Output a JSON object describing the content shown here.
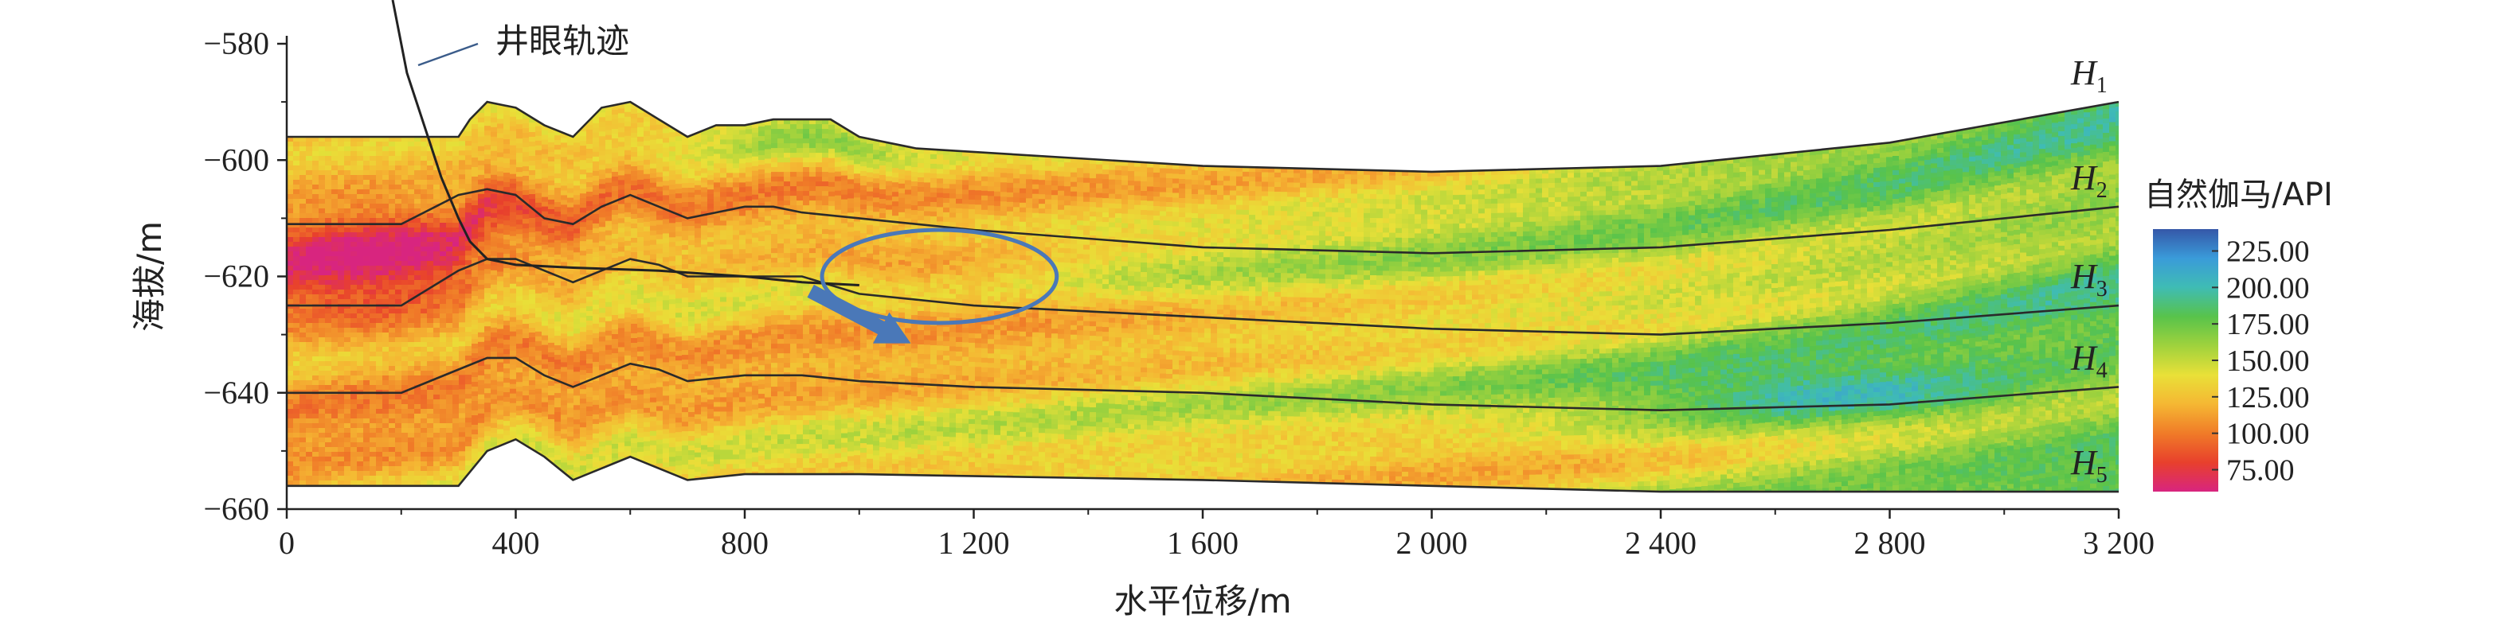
{
  "chart_data": {
    "type": "heatmap",
    "title": "",
    "xlabel": "水平位移/m",
    "ylabel": "海拔/m",
    "xlim": [
      0,
      3200
    ],
    "ylim": [
      -660,
      -580
    ],
    "x_ticks": [
      0,
      400,
      800,
      1200,
      1600,
      2000,
      2400,
      2800,
      3200
    ],
    "x_tick_labels": [
      "0",
      "400",
      "800",
      "1 200",
      "1 600",
      "2 000",
      "2 400",
      "2 800",
      "3 200"
    ],
    "y_ticks": [
      -580,
      -600,
      -620,
      -640,
      -660
    ],
    "y_tick_labels": [
      "−580",
      "−600",
      "−620",
      "−640",
      "−660"
    ],
    "grid": false,
    "colorbar": {
      "title": "自然伽马/API",
      "placement": "right",
      "min": 60,
      "max": 240,
      "ticks": [
        225,
        200,
        175,
        150,
        125,
        100,
        75
      ],
      "tick_labels": [
        "225.00",
        "200.00",
        "175.00",
        "150.00",
        "125.00",
        "100.00",
        "75.00"
      ],
      "colors": [
        "#d8257f",
        "#e8402c",
        "#f07b28",
        "#f5b733",
        "#e9e038",
        "#9fd23d",
        "#58c34b",
        "#3fbcb4",
        "#3a9bd9",
        "#3557a8"
      ]
    },
    "model_top": [
      [
        0,
        -596
      ],
      [
        300,
        -596
      ],
      [
        320,
        -593
      ],
      [
        350,
        -590
      ],
      [
        400,
        -591
      ],
      [
        450,
        -594
      ],
      [
        500,
        -596
      ],
      [
        550,
        -591
      ],
      [
        600,
        -590
      ],
      [
        650,
        -593
      ],
      [
        700,
        -596
      ],
      [
        750,
        -594
      ],
      [
        800,
        -594
      ],
      [
        850,
        -593
      ],
      [
        900,
        -593
      ],
      [
        950,
        -593
      ],
      [
        1000,
        -596
      ],
      [
        1100,
        -598
      ],
      [
        1600,
        -601
      ],
      [
        2000,
        -602
      ],
      [
        2400,
        -601
      ],
      [
        2800,
        -597
      ],
      [
        3200,
        -590
      ]
    ],
    "model_bottom": [
      [
        0,
        -656
      ],
      [
        300,
        -656
      ],
      [
        350,
        -650
      ],
      [
        400,
        -648
      ],
      [
        450,
        -651
      ],
      [
        500,
        -655
      ],
      [
        550,
        -653
      ],
      [
        600,
        -651
      ],
      [
        650,
        -653
      ],
      [
        700,
        -655
      ],
      [
        800,
        -654
      ],
      [
        900,
        -654
      ],
      [
        1000,
        -654
      ],
      [
        1600,
        -655
      ],
      [
        2000,
        -656
      ],
      [
        2400,
        -657
      ],
      [
        2800,
        -657
      ],
      [
        3200,
        -657
      ]
    ],
    "horizons": [
      {
        "name": "H",
        "sub": "1",
        "points": [
          [
            0,
            -596
          ],
          [
            300,
            -596
          ],
          [
            320,
            -593
          ],
          [
            350,
            -590
          ],
          [
            400,
            -591
          ],
          [
            450,
            -594
          ],
          [
            500,
            -596
          ],
          [
            550,
            -591
          ],
          [
            600,
            -590
          ],
          [
            650,
            -593
          ],
          [
            700,
            -596
          ],
          [
            750,
            -594
          ],
          [
            800,
            -594
          ],
          [
            850,
            -593
          ],
          [
            900,
            -593
          ],
          [
            950,
            -593
          ],
          [
            1000,
            -596
          ],
          [
            1100,
            -598
          ],
          [
            1600,
            -601
          ],
          [
            2000,
            -602
          ],
          [
            2400,
            -601
          ],
          [
            2800,
            -597
          ],
          [
            3200,
            -590
          ]
        ]
      },
      {
        "name": "H",
        "sub": "2",
        "points": [
          [
            0,
            -611
          ],
          [
            200,
            -611
          ],
          [
            300,
            -606
          ],
          [
            350,
            -605
          ],
          [
            400,
            -606
          ],
          [
            450,
            -610
          ],
          [
            500,
            -611
          ],
          [
            550,
            -608
          ],
          [
            600,
            -606
          ],
          [
            650,
            -608
          ],
          [
            700,
            -610
          ],
          [
            750,
            -609
          ],
          [
            800,
            -608
          ],
          [
            850,
            -608
          ],
          [
            900,
            -609
          ],
          [
            1000,
            -610
          ],
          [
            1200,
            -612
          ],
          [
            1600,
            -615
          ],
          [
            2000,
            -616
          ],
          [
            2400,
            -615
          ],
          [
            2800,
            -612
          ],
          [
            3200,
            -608
          ]
        ]
      },
      {
        "name": "H",
        "sub": "3",
        "points": [
          [
            0,
            -625
          ],
          [
            200,
            -625
          ],
          [
            300,
            -619
          ],
          [
            350,
            -617
          ],
          [
            400,
            -617
          ],
          [
            450,
            -619
          ],
          [
            500,
            -621
          ],
          [
            550,
            -619
          ],
          [
            600,
            -617
          ],
          [
            650,
            -618
          ],
          [
            700,
            -620
          ],
          [
            800,
            -620
          ],
          [
            900,
            -620
          ],
          [
            1000,
            -623
          ],
          [
            1200,
            -625
          ],
          [
            1600,
            -627
          ],
          [
            2000,
            -629
          ],
          [
            2400,
            -630
          ],
          [
            2800,
            -628
          ],
          [
            3200,
            -625
          ]
        ]
      },
      {
        "name": "H",
        "sub": "4",
        "points": [
          [
            0,
            -640
          ],
          [
            200,
            -640
          ],
          [
            300,
            -636
          ],
          [
            350,
            -634
          ],
          [
            400,
            -634
          ],
          [
            450,
            -637
          ],
          [
            500,
            -639
          ],
          [
            550,
            -637
          ],
          [
            600,
            -635
          ],
          [
            650,
            -636
          ],
          [
            700,
            -638
          ],
          [
            800,
            -637
          ],
          [
            900,
            -637
          ],
          [
            1000,
            -638
          ],
          [
            1200,
            -639
          ],
          [
            1600,
            -640
          ],
          [
            2000,
            -642
          ],
          [
            2400,
            -643
          ],
          [
            2800,
            -642
          ],
          [
            3200,
            -639
          ]
        ]
      },
      {
        "name": "H",
        "sub": "5",
        "points": [
          [
            0,
            -656
          ],
          [
            300,
            -656
          ],
          [
            350,
            -650
          ],
          [
            400,
            -648
          ],
          [
            450,
            -651
          ],
          [
            500,
            -655
          ],
          [
            550,
            -653
          ],
          [
            600,
            -651
          ],
          [
            650,
            -653
          ],
          [
            700,
            -655
          ],
          [
            800,
            -654
          ],
          [
            900,
            -654
          ],
          [
            1000,
            -654
          ],
          [
            1600,
            -655
          ],
          [
            2000,
            -656
          ],
          [
            2400,
            -657
          ],
          [
            2800,
            -657
          ],
          [
            3200,
            -657
          ]
        ]
      }
    ],
    "well_trajectory": {
      "label": "井眼轨迹",
      "points": [
        [
          185,
          -577
        ],
        [
          210,
          -585
        ],
        [
          240,
          -594
        ],
        [
          270,
          -603
        ],
        [
          300,
          -610
        ],
        [
          320,
          -614
        ],
        [
          350,
          -617
        ],
        [
          400,
          -618
        ],
        [
          500,
          -618.5
        ],
        [
          650,
          -619
        ],
        [
          800,
          -620
        ],
        [
          900,
          -621
        ],
        [
          1000,
          -621.5
        ]
      ]
    },
    "annotations": {
      "ellipse": {
        "cx": 1140,
        "cy": -620,
        "rx": 205,
        "ry": 8
      },
      "arrow": {
        "from": [
          915,
          -622.5
        ],
        "to": [
          1090,
          -631.5
        ]
      }
    }
  }
}
